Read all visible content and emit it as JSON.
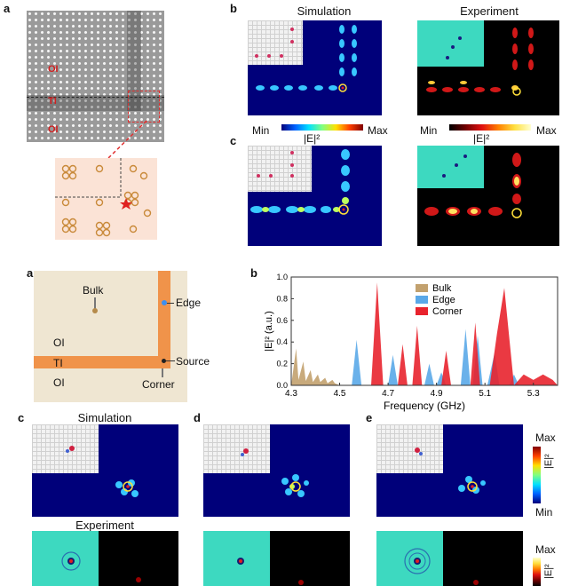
{
  "fig1": {
    "panel_a": "a",
    "panel_b": "b",
    "panel_c": "c",
    "photo_labels": [
      "OI",
      "TI",
      "OI"
    ],
    "col_titles": [
      "Simulation",
      "Experiment"
    ],
    "cbar_min": "Min",
    "cbar_max": "Max",
    "cbar_label": "|E|²"
  },
  "fig2": {
    "panel_a": "a",
    "panel_b": "b",
    "panel_c": "c",
    "panel_d": "d",
    "panel_e": "e",
    "schem_bulk": "Bulk",
    "schem_edge": "Edge",
    "schem_source": "Source",
    "schem_corner": "Corner",
    "schem_oi_top": "OI",
    "schem_ti": "TI",
    "schem_oi_bottom": "OI",
    "sim_title": "Simulation",
    "exp_title": "Experiment",
    "cbar_max": "Max",
    "cbar_min": "Min",
    "cbar_label": "|E|²"
  },
  "chart_data": {
    "type": "area",
    "xlabel": "Frequency (GHz)",
    "ylabel": "|E|² (a.u.)",
    "xlim": [
      4.3,
      5.4
    ],
    "ylim": [
      0,
      1.0
    ],
    "xticks": [
      "4.3",
      "4.5",
      "4.7",
      "4.9",
      "5.1",
      "5.3"
    ],
    "yticks": [
      "0.0",
      "0.2",
      "0.4",
      "0.6",
      "0.8",
      "1.0"
    ],
    "legend_position": "top-center",
    "series": [
      {
        "name": "Bulk",
        "color": "#c2a16e",
        "x": [
          4.3,
          4.32,
          4.33,
          4.35,
          4.36,
          4.38,
          4.39,
          4.41,
          4.42,
          4.44,
          4.45,
          4.47,
          4.48,
          4.5
        ],
        "y": [
          0.0,
          0.34,
          0.05,
          0.22,
          0.04,
          0.14,
          0.03,
          0.1,
          0.03,
          0.07,
          0.02,
          0.05,
          0.02,
          0.0
        ]
      },
      {
        "name": "Edge",
        "color": "#5aa8e8",
        "x": [
          4.55,
          4.57,
          4.59,
          4.7,
          4.72,
          4.74,
          4.85,
          4.87,
          4.89,
          4.9,
          4.92,
          4.94,
          5.0,
          5.02,
          5.04,
          5.05,
          5.07,
          5.09,
          5.11,
          5.14,
          5.16,
          5.2,
          5.22,
          5.24
        ],
        "y": [
          0.0,
          0.42,
          0.0,
          0.0,
          0.28,
          0.0,
          0.0,
          0.2,
          0.0,
          0.0,
          0.12,
          0.0,
          0.0,
          0.52,
          0.0,
          0.0,
          0.46,
          0.0,
          0.0,
          0.3,
          0.0,
          0.0,
          0.1,
          0.0
        ]
      },
      {
        "name": "Corner",
        "color": "#e8232d",
        "x": [
          4.63,
          4.655,
          4.68,
          4.74,
          4.76,
          4.78,
          4.8,
          4.82,
          4.84,
          4.92,
          4.94,
          4.96,
          5.04,
          5.06,
          5.08,
          5.12,
          5.15,
          5.18,
          5.22,
          5.26,
          5.3,
          5.34,
          5.38,
          5.4
        ],
        "y": [
          0.0,
          0.95,
          0.0,
          0.0,
          0.38,
          0.0,
          0.0,
          0.55,
          0.0,
          0.0,
          0.32,
          0.0,
          0.0,
          0.58,
          0.0,
          0.0,
          0.48,
          0.9,
          0.0,
          0.1,
          0.05,
          0.1,
          0.05,
          0.0
        ]
      }
    ]
  }
}
